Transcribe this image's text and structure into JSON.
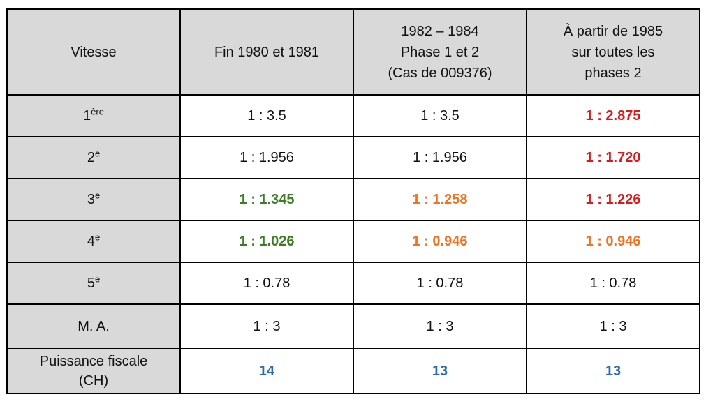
{
  "colors": {
    "black": "#111111",
    "red": "#d91b1e",
    "green": "#3e7d28",
    "orange": "#ee7423",
    "blue": "#2d6da4",
    "header_bg": "#d9d9d9",
    "border": "#000000"
  },
  "table": {
    "header": {
      "col0": "Vitesse",
      "col1": "Fin 1980 et 1981",
      "col2_line1": "1982 – 1984",
      "col2_line2": "Phase 1 et 2",
      "col2_line3": "(Cas de 009376)",
      "col3_line1": "À partir de 1985",
      "col3_line2": "sur toutes les",
      "col3_line3": "phases 2"
    },
    "rows": [
      {
        "label_base": "1",
        "label_sup": "ère",
        "v1": "1 : 3.5",
        "v2": "1 : 3.5",
        "v3": "1 : 2.875"
      },
      {
        "label_base": "2",
        "label_sup": "e",
        "v1": "1 : 1.956",
        "v2": "1 : 1.956",
        "v3": "1 : 1.720"
      },
      {
        "label_base": "3",
        "label_sup": "e",
        "v1": "1 : 1.345",
        "v2": "1 : 1.258",
        "v3": "1 : 1.226"
      },
      {
        "label_base": "4",
        "label_sup": "e",
        "v1": "1 : 1.026",
        "v2": "1 : 0.946",
        "v3": "1 : 0.946"
      },
      {
        "label_base": "5",
        "label_sup": "e",
        "v1": "1 : 0.78",
        "v2": "1 : 0.78",
        "v3": "1 : 0.78"
      },
      {
        "label_base": "M. A.",
        "label_sup": "",
        "v1": "1 : 3",
        "v2": "1 : 3",
        "v3": "1 : 3"
      },
      {
        "label_line1": "Puissance fiscale",
        "label_line2": "(CH)",
        "v1": "14",
        "v2": "13",
        "v3": "13"
      }
    ]
  }
}
